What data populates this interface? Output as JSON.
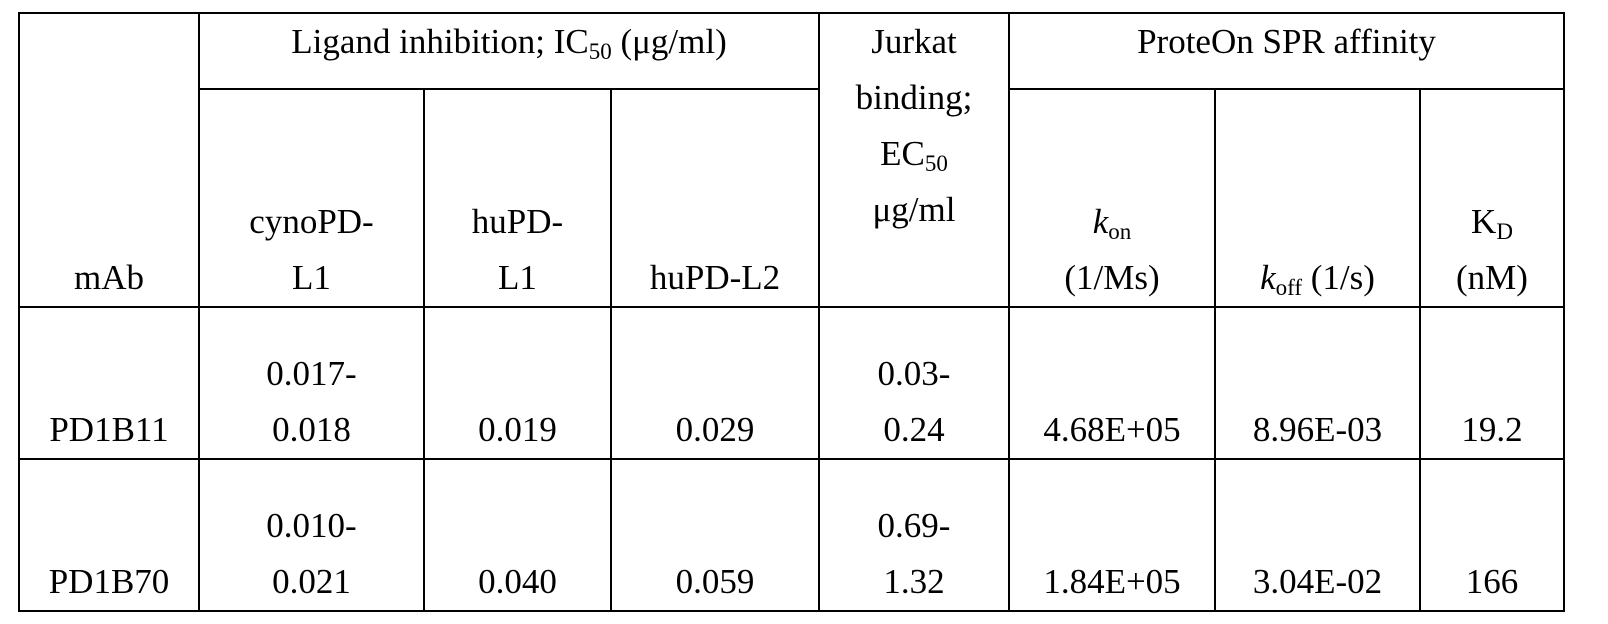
{
  "table": {
    "headers": {
      "mab": "mAb",
      "ligand_group": {
        "prefix": "Ligand inhibition; IC",
        "sub": "50",
        "suffix": " (μg/ml)"
      },
      "jurkat": {
        "line1": "Jurkat",
        "line2": "binding;",
        "line3_main": "EC",
        "line3_sub": "50",
        "line4": "μg/ml"
      },
      "spr_group": "ProteOn SPR affinity",
      "cyno": {
        "line1": "cynoPD-",
        "line2": "L1"
      },
      "hupdl1": {
        "line1": "huPD-",
        "line2": "L1"
      },
      "hupdl2": "huPD-L2",
      "kon": {
        "k": "k",
        "sub": "on",
        "line2": "(1/Ms)"
      },
      "koff": {
        "k": "k",
        "sub": "off",
        "suffix": " (1/s)"
      },
      "kd": {
        "main": "K",
        "sub": "D",
        "line2": "(nM)"
      }
    },
    "rows": [
      {
        "mab": "PD1B11",
        "cyno": {
          "line1": "0.017-",
          "line2": "0.018"
        },
        "hupdl1": "0.019",
        "hupdl2": "0.029",
        "jurkat": {
          "line1": "0.03-",
          "line2": "0.24"
        },
        "kon": "4.68E+05",
        "koff": "8.96E-03",
        "kd": "19.2"
      },
      {
        "mab": "PD1B70",
        "cyno": {
          "line1": "0.010-",
          "line2": "0.021"
        },
        "hupdl1": "0.040",
        "hupdl2": "0.059",
        "jurkat": {
          "line1": "0.69-",
          "line2": "1.32"
        },
        "kon": "1.84E+05",
        "koff": "3.04E-02",
        "kd": "166"
      }
    ]
  }
}
